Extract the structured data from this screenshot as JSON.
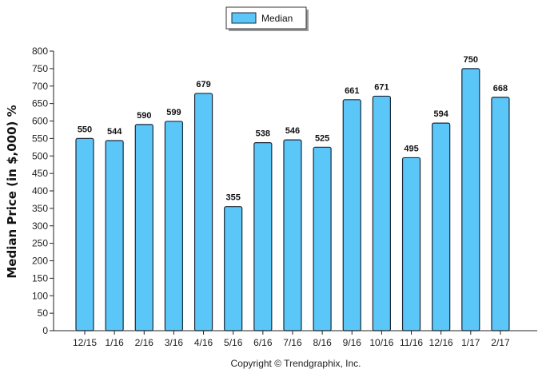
{
  "chart_data": {
    "type": "bar",
    "categories": [
      "12/15",
      "1/16",
      "2/16",
      "3/16",
      "4/16",
      "5/16",
      "6/16",
      "7/16",
      "8/16",
      "9/16",
      "10/16",
      "11/16",
      "12/16",
      "1/17",
      "2/17"
    ],
    "series": [
      {
        "name": "Median",
        "values": [
          550,
          544,
          590,
          599,
          679,
          355,
          538,
          546,
          525,
          661,
          671,
          495,
          594,
          750,
          668
        ]
      }
    ],
    "data_labels": [
      "550",
      "544",
      "590",
      "599",
      "679",
      "355",
      "538",
      "546",
      "525",
      "661",
      "671",
      "495",
      "594",
      "750",
      "668"
    ],
    "ylabel": "Median Price (in $,000) %",
    "ylim": [
      0,
      800
    ],
    "yticks": [
      0,
      50,
      100,
      150,
      200,
      250,
      300,
      350,
      400,
      450,
      500,
      550,
      600,
      650,
      700,
      750,
      800
    ],
    "grid": false,
    "legend_position": "top-center",
    "bar_color": "#5bc6f8",
    "bar_edge_color": "#1b2a3a",
    "footer": "Copyright © Trendgraphix, Inc."
  }
}
